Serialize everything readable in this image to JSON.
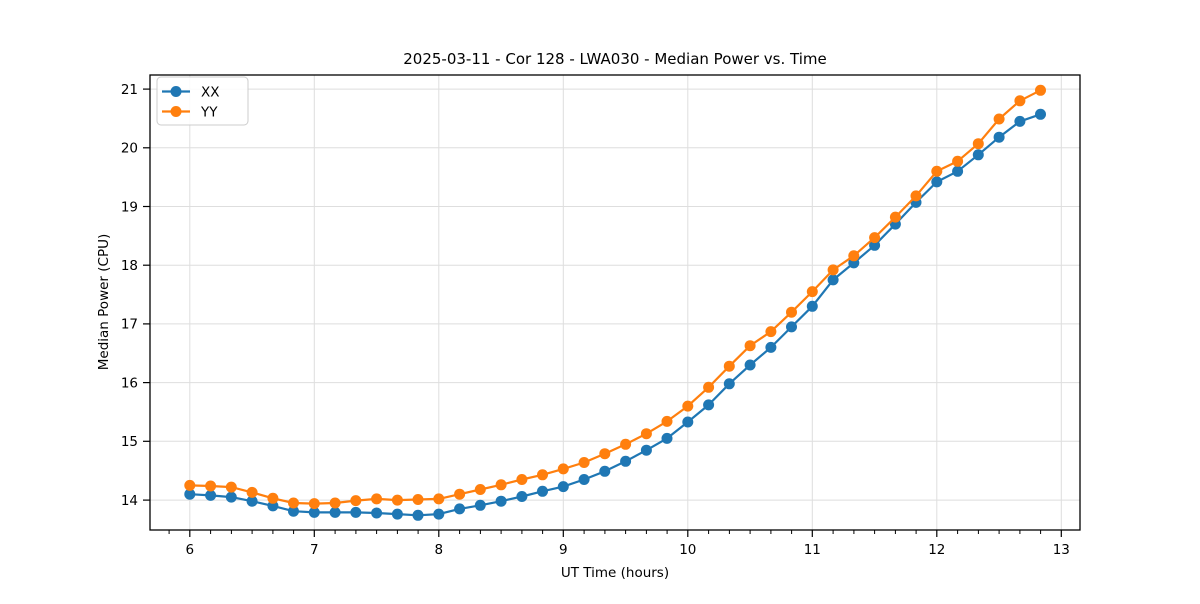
{
  "chart_data": {
    "type": "line",
    "title": "2025-03-11 - Cor 128 - LWA030 - Median Power vs. Time",
    "xlabel": "UT Time (hours)",
    "ylabel": "Median Power (CPU)",
    "xlim": [
      5.68,
      13.15
    ],
    "ylim": [
      13.49,
      21.24
    ],
    "xticks": [
      6,
      7,
      8,
      9,
      10,
      11,
      12,
      13
    ],
    "yticks": [
      14,
      15,
      16,
      17,
      18,
      19,
      20,
      21
    ],
    "x_minor_step": 0.16667,
    "grid": true,
    "grid_color": "#dedede",
    "legend_position": "upper-left",
    "x": [
      6.0,
      6.167,
      6.333,
      6.5,
      6.667,
      6.833,
      7.0,
      7.167,
      7.333,
      7.5,
      7.667,
      7.833,
      8.0,
      8.167,
      8.333,
      8.5,
      8.667,
      8.833,
      9.0,
      9.167,
      9.333,
      9.5,
      9.667,
      9.833,
      10.0,
      10.167,
      10.333,
      10.5,
      10.667,
      10.833,
      11.0,
      11.167,
      11.333,
      11.5,
      11.667,
      11.833,
      12.0,
      12.167,
      12.333,
      12.5,
      12.667,
      12.833
    ],
    "series": [
      {
        "name": "XX",
        "color": "#1f77b4",
        "values": [
          14.1,
          14.08,
          14.05,
          13.98,
          13.9,
          13.81,
          13.79,
          13.79,
          13.79,
          13.78,
          13.76,
          13.74,
          13.76,
          13.85,
          13.91,
          13.98,
          14.06,
          14.15,
          14.23,
          14.35,
          14.49,
          14.66,
          14.85,
          15.05,
          15.33,
          15.62,
          15.98,
          16.3,
          16.6,
          16.95,
          17.3,
          17.75,
          18.04,
          18.34,
          18.7,
          19.07,
          19.42,
          19.6,
          19.88,
          20.18,
          20.45,
          20.57
        ]
      },
      {
        "name": "YY",
        "color": "#ff7f0e",
        "values": [
          14.25,
          14.24,
          14.22,
          14.13,
          14.03,
          13.95,
          13.94,
          13.95,
          13.99,
          14.02,
          14.0,
          14.01,
          14.02,
          14.1,
          14.18,
          14.26,
          14.35,
          14.43,
          14.53,
          14.64,
          14.79,
          14.95,
          15.13,
          15.34,
          15.6,
          15.92,
          16.28,
          16.63,
          16.87,
          17.2,
          17.55,
          17.92,
          18.16,
          18.47,
          18.82,
          19.18,
          19.6,
          19.77,
          20.07,
          20.49,
          20.8,
          20.98
        ]
      }
    ]
  }
}
